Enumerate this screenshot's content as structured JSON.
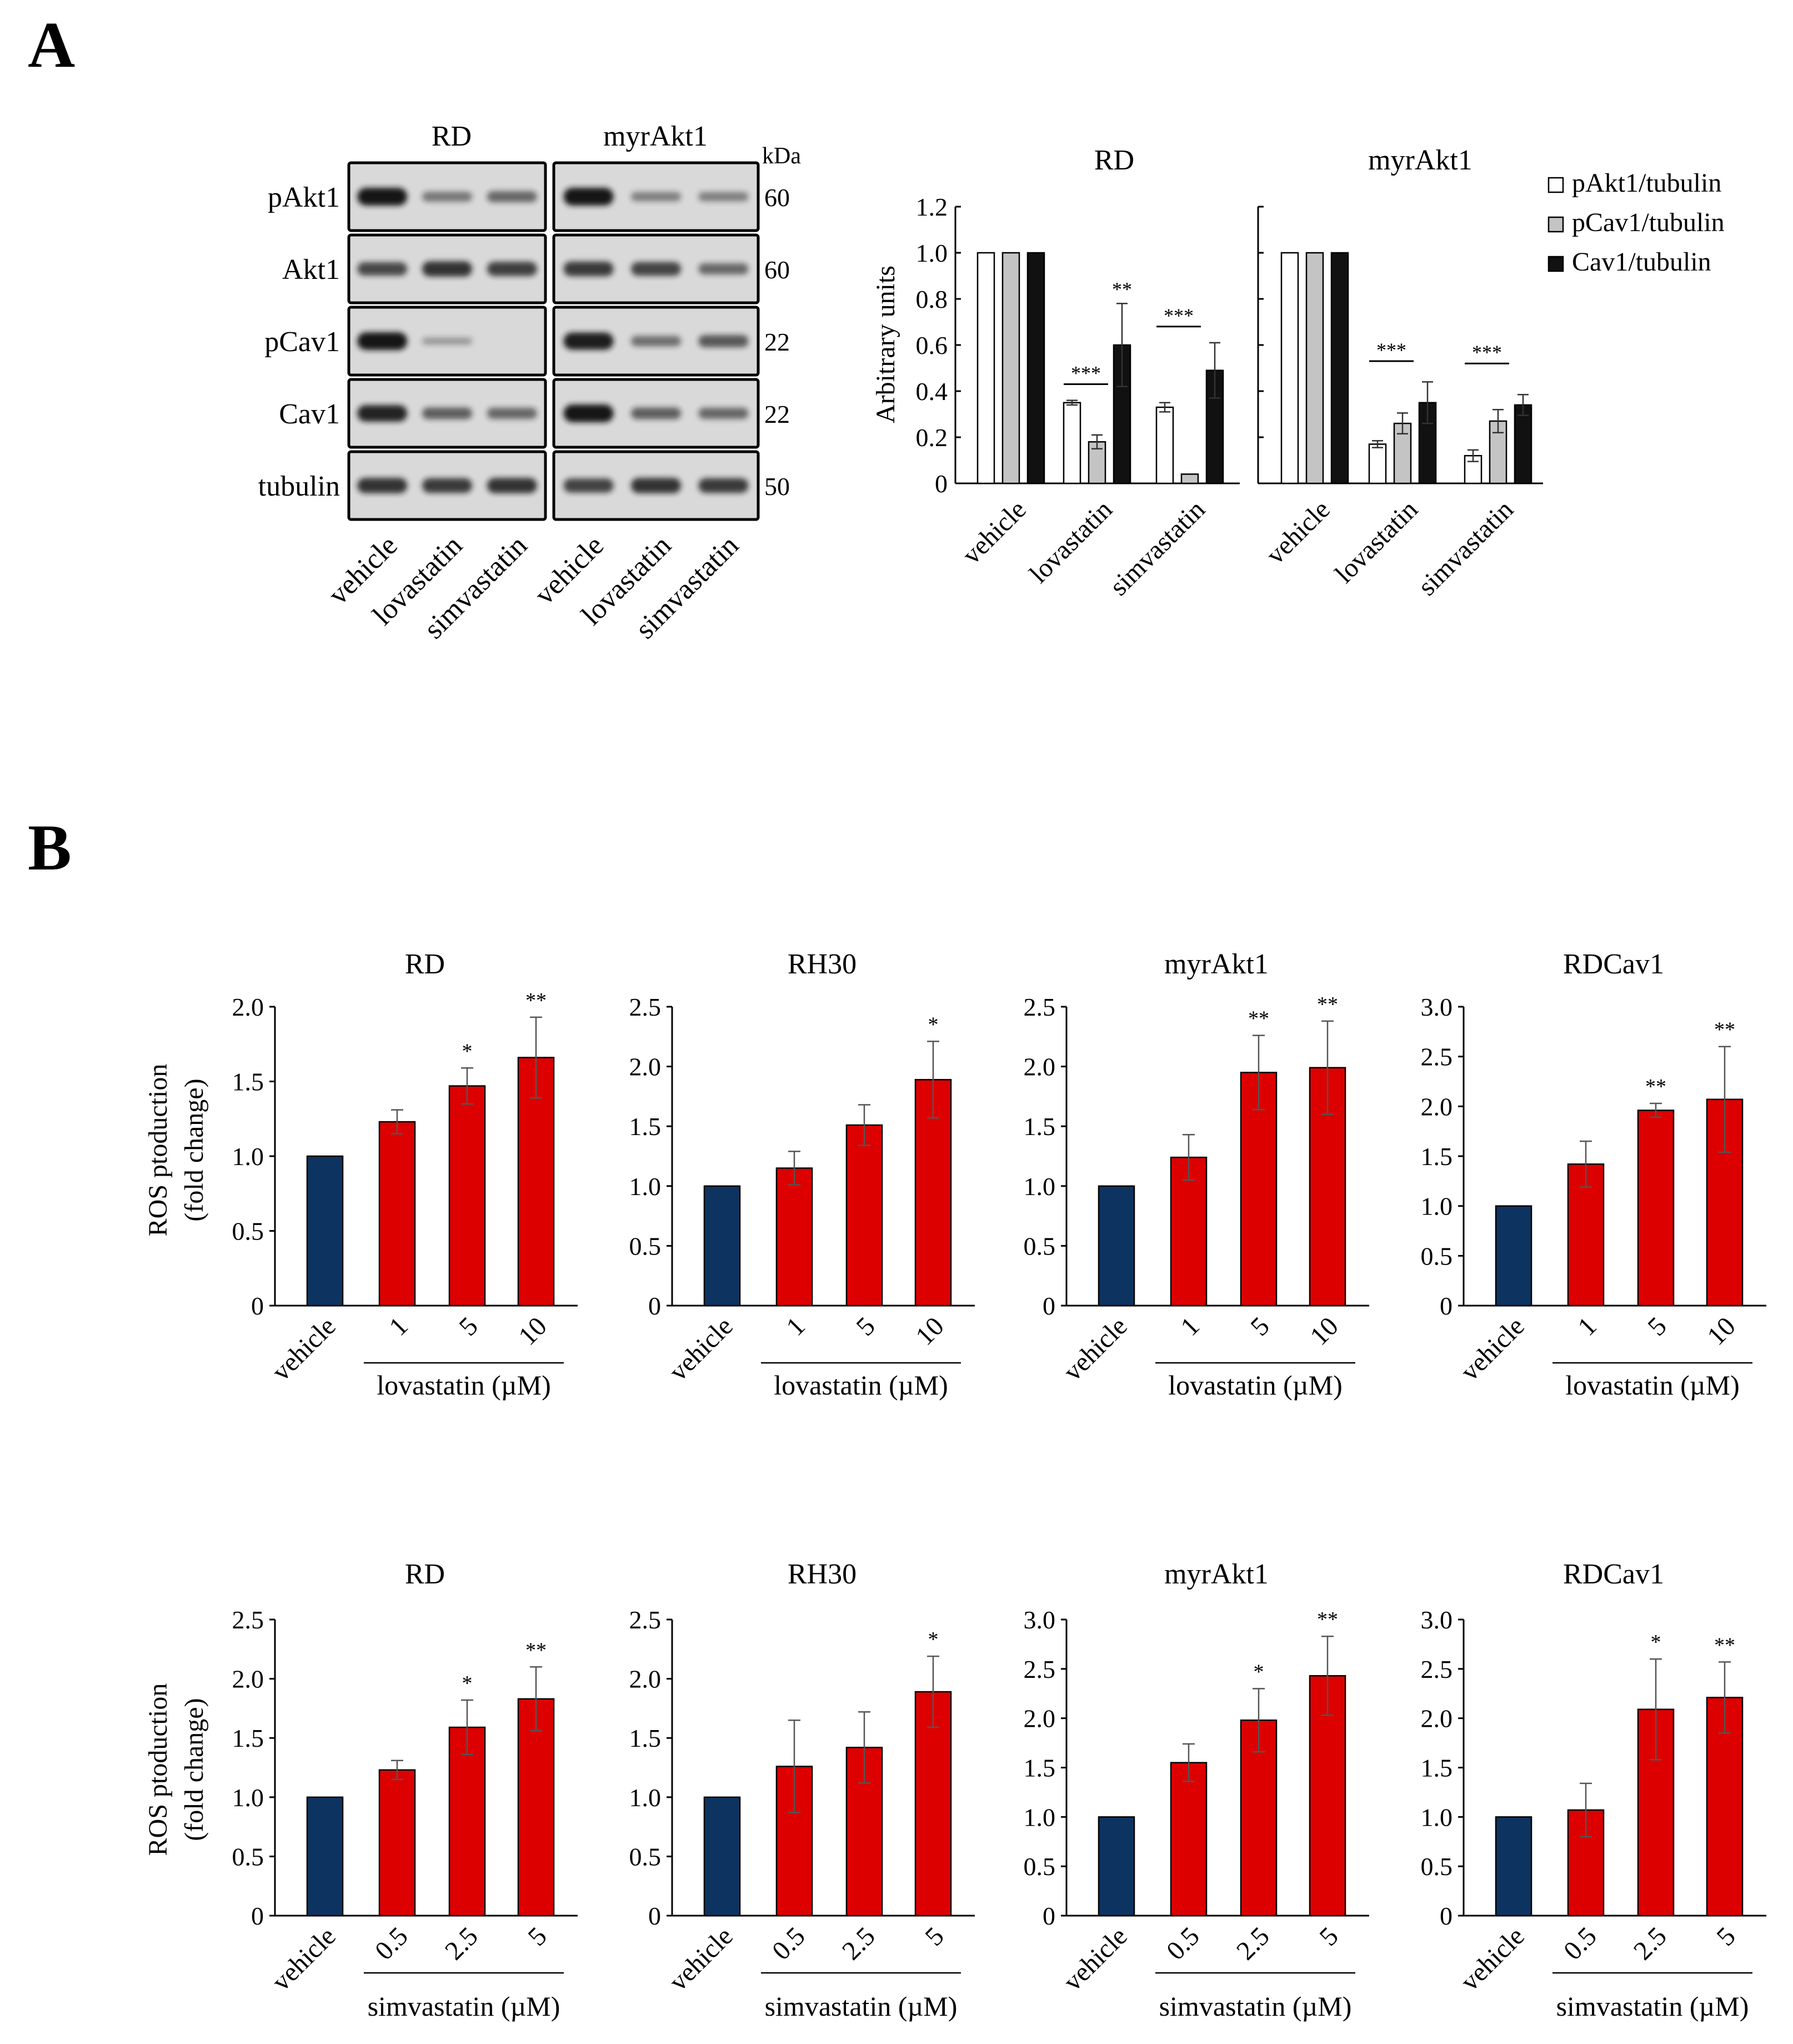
{
  "colors": {
    "vehicle": "#0d3461",
    "treated": "#dd0000",
    "pAkt1": "#ffffff",
    "pCav1": "#c4c4c4",
    "Cav1": "#111111",
    "blot_bg": "#d9d9d9"
  },
  "panel_letters": [
    "A",
    "B"
  ],
  "blot": {
    "groups": [
      "RD",
      "myrAkt1"
    ],
    "kda_label": "kDa",
    "rows": [
      {
        "label": "pAkt1",
        "kda": "60",
        "intensity": [
          [
            1.0,
            0.35,
            0.45
          ],
          [
            1.0,
            0.3,
            0.3
          ]
        ]
      },
      {
        "label": "Akt1",
        "kda": "60",
        "intensity": [
          [
            0.65,
            0.8,
            0.72
          ],
          [
            0.75,
            0.68,
            0.45
          ]
        ]
      },
      {
        "label": "pCav1",
        "kda": "22",
        "intensity": [
          [
            1.0,
            0.12,
            0.0
          ],
          [
            0.95,
            0.4,
            0.55
          ]
        ]
      },
      {
        "label": "Cav1",
        "kda": "22",
        "intensity": [
          [
            0.9,
            0.5,
            0.45
          ],
          [
            1.0,
            0.5,
            0.45
          ]
        ]
      },
      {
        "label": "tubulin",
        "kda": "50",
        "intensity": [
          [
            0.8,
            0.75,
            0.8
          ],
          [
            0.7,
            0.8,
            0.75
          ]
        ]
      }
    ],
    "lane_labels": [
      "vehicle",
      "lovastatin",
      "simvastatin",
      "vehicle",
      "lovastatin",
      "simvastatin"
    ]
  },
  "chart_data": [
    {
      "id": "A-quant",
      "type": "bar",
      "ylabel": "Arbitrary units",
      "ylim": [
        0,
        1.2
      ],
      "yticks": [
        "0",
        "0.2",
        "0.4",
        "0.6",
        "0.8",
        "1.0",
        "1.2"
      ],
      "categories": [
        "vehicle",
        "lovastatin",
        "simvastatin"
      ],
      "legend": {
        "placement": "top-right",
        "entries": [
          "pAkt1/tubulin",
          "pCav1/tubulin",
          "Cav1/tubulin"
        ]
      },
      "panels": [
        {
          "title": "RD",
          "series": [
            {
              "name": "pAkt1/tubulin",
              "values": [
                1.0,
                0.35,
                0.33
              ],
              "errors": [
                0,
                0.01,
                0.02
              ]
            },
            {
              "name": "pCav1/tubulin",
              "values": [
                1.0,
                0.18,
                0.04
              ],
              "errors": [
                0,
                0.03,
                0
              ]
            },
            {
              "name": "Cav1/tubulin",
              "values": [
                1.0,
                0.6,
                0.49
              ],
              "errors": [
                0,
                0.18,
                0.12
              ]
            }
          ],
          "significance": [
            {
              "category": 1,
              "series": 2,
              "mark": "**"
            },
            {
              "category": 1,
              "bracket": true,
              "mark": "***"
            },
            {
              "category": 2,
              "bracket": true,
              "mark": "***"
            }
          ]
        },
        {
          "title": "myrAkt1",
          "series": [
            {
              "name": "pAkt1/tubulin",
              "values": [
                1.0,
                0.17,
                0.12
              ],
              "errors": [
                0,
                0.015,
                0.025
              ]
            },
            {
              "name": "pCav1/tubulin",
              "values": [
                1.0,
                0.26,
                0.27
              ],
              "errors": [
                0,
                0.045,
                0.05
              ]
            },
            {
              "name": "Cav1/tubulin",
              "values": [
                1.0,
                0.35,
                0.34
              ],
              "errors": [
                0,
                0.09,
                0.045
              ]
            }
          ],
          "significance": [
            {
              "category": 1,
              "bracket": true,
              "mark": "***"
            },
            {
              "category": 2,
              "bracket": true,
              "mark": "***"
            }
          ]
        }
      ]
    },
    {
      "id": "B-lovastatin",
      "type": "bar",
      "ylabel": [
        "ROS ptoduction",
        "(fold change)"
      ],
      "xlabel": "lovastatin (µM)",
      "categories": [
        "vehicle",
        "1",
        "5",
        "10"
      ],
      "panels": [
        {
          "title": "RD",
          "ylim": [
            0,
            2.0
          ],
          "yticks": [
            "0",
            "0.5",
            "1.0",
            "1.5",
            "2.0"
          ],
          "values": [
            1.0,
            1.23,
            1.47,
            1.66
          ],
          "errors": [
            0,
            0.08,
            0.12,
            0.27
          ],
          "marks": [
            "",
            "",
            "*",
            "**"
          ]
        },
        {
          "title": "RH30",
          "ylim": [
            0,
            2.5
          ],
          "yticks": [
            "0",
            "0.5",
            "1.0",
            "1.5",
            "2.0",
            "2.5"
          ],
          "values": [
            1.0,
            1.15,
            1.51,
            1.89
          ],
          "errors": [
            0,
            0.14,
            0.17,
            0.32
          ],
          "marks": [
            "",
            "",
            "",
            "*"
          ]
        },
        {
          "title": "myrAkt1",
          "ylim": [
            0,
            2.5
          ],
          "yticks": [
            "0",
            "0.5",
            "1.0",
            "1.5",
            "2.0",
            "2.5"
          ],
          "values": [
            1.0,
            1.24,
            1.95,
            1.99
          ],
          "errors": [
            0,
            0.19,
            0.31,
            0.39
          ],
          "marks": [
            "",
            "",
            "**",
            "**"
          ]
        },
        {
          "title": "RDCav1",
          "ylim": [
            0,
            3.0
          ],
          "yticks": [
            "0",
            "0.5",
            "1.0",
            "1.5",
            "2.0",
            "2.5",
            "3.0"
          ],
          "values": [
            1.0,
            1.42,
            1.96,
            2.07
          ],
          "errors": [
            0,
            0.23,
            0.07,
            0.53
          ],
          "marks": [
            "",
            "",
            "**",
            "**"
          ]
        }
      ]
    },
    {
      "id": "B-simvastatin",
      "type": "bar",
      "ylabel": [
        "ROS ptoduction",
        "(fold change)"
      ],
      "xlabel": "simvastatin (µM)",
      "categories": [
        "vehicle",
        "0.5",
        "2.5",
        "5"
      ],
      "panels": [
        {
          "title": "RD",
          "ylim": [
            0,
            2.5
          ],
          "yticks": [
            "0",
            "0.5",
            "1.0",
            "1.5",
            "2.0",
            "2.5"
          ],
          "values": [
            1.0,
            1.23,
            1.59,
            1.83
          ],
          "errors": [
            0,
            0.08,
            0.23,
            0.27
          ],
          "marks": [
            "",
            "",
            "*",
            "**"
          ]
        },
        {
          "title": "RH30",
          "ylim": [
            0,
            2.5
          ],
          "yticks": [
            "0",
            "0.5",
            "1.0",
            "1.5",
            "2.0",
            "2.5"
          ],
          "values": [
            1.0,
            1.26,
            1.42,
            1.89
          ],
          "errors": [
            0,
            0.39,
            0.3,
            0.3
          ],
          "marks": [
            "",
            "",
            "",
            "*"
          ]
        },
        {
          "title": "myrAkt1",
          "ylim": [
            0,
            3.0
          ],
          "yticks": [
            "0",
            "0.5",
            "1.0",
            "1.5",
            "2.0",
            "2.5",
            "3.0"
          ],
          "values": [
            1.0,
            1.55,
            1.98,
            2.43
          ],
          "errors": [
            0,
            0.19,
            0.32,
            0.4
          ],
          "marks": [
            "",
            "",
            "*",
            "**"
          ]
        },
        {
          "title": "RDCav1",
          "ylim": [
            0,
            3.0
          ],
          "yticks": [
            "0",
            "0.5",
            "1.0",
            "1.5",
            "2.0",
            "2.5",
            "3.0"
          ],
          "values": [
            1.0,
            1.07,
            2.09,
            2.21
          ],
          "errors": [
            0,
            0.27,
            0.51,
            0.36
          ],
          "marks": [
            "",
            "",
            "*",
            "**"
          ]
        }
      ]
    }
  ]
}
